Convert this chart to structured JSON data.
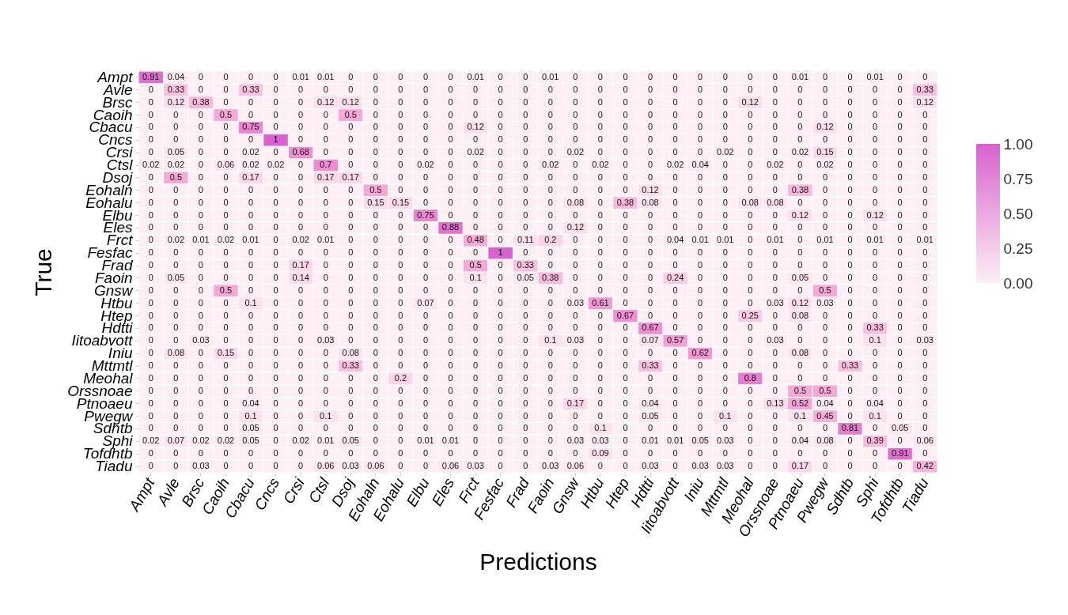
{
  "chart_data": {
    "type": "heatmap",
    "xlabel": "Predictions",
    "ylabel": "True",
    "categories": [
      "Ampt",
      "Avle",
      "Brsc",
      "Caoih",
      "Cbacu",
      "Cncs",
      "Crsi",
      "Ctsl",
      "Dsoj",
      "Eohaln",
      "Eohalu",
      "Elbu",
      "Eles",
      "Frct",
      "Fesfac",
      "Frad",
      "Faoin",
      "Gnsw",
      "Htbu",
      "Htep",
      "Hdtti",
      "Iitoabvott",
      "Iniu",
      "Mttmtl",
      "Meohal",
      "Orssnoae",
      "Ptnoaeu",
      "Pwegw",
      "Sdhtb",
      "Sphi",
      "Tofdhtb",
      "Tiadu"
    ],
    "y_categories": [
      "Ampt",
      "Avle",
      "Brsc",
      "Caoih",
      "Cbacu",
      "Cncs",
      "Crsi",
      "Ctsl",
      "Dsoj",
      "Eohaln",
      "Eohalu",
      "Elbu",
      "Eles",
      "Frct",
      "Fesfac",
      "Frad",
      "Faoin",
      "Gnsw",
      "Htbu",
      "Htep",
      "Hdtti",
      "Iitoabvott",
      "Iniu",
      "Mttmtl",
      "Meohal",
      "Orssnoae",
      "Ptnoaeu",
      "Pwegw",
      "Sdhtb",
      "Sphi",
      "Tofdhtb",
      "Tiadu"
    ],
    "cells": [
      [
        0.91,
        0.04,
        0,
        0,
        0,
        0,
        0.01,
        0.01,
        0,
        0,
        0,
        0,
        0,
        0.01,
        0,
        0,
        0.01,
        0,
        0,
        0,
        0,
        0,
        0,
        0,
        0,
        0,
        0.01,
        0,
        0,
        0.01,
        0,
        0
      ],
      [
        0,
        0.33,
        0,
        0,
        0.33,
        0,
        0,
        0,
        0,
        0,
        0,
        0,
        0,
        0,
        0,
        0,
        0,
        0,
        0,
        0,
        0,
        0,
        0,
        0,
        0,
        0,
        0,
        0,
        0,
        0,
        0,
        0.33
      ],
      [
        0,
        0.12,
        0.38,
        0,
        0,
        0,
        0,
        0.12,
        0.12,
        0,
        0,
        0,
        0,
        0,
        0,
        0,
        0,
        0,
        0,
        0,
        0,
        0,
        0,
        0,
        0.12,
        0,
        0,
        0,
        0,
        0,
        0,
        0.12
      ],
      [
        0,
        0,
        0,
        0.5,
        0,
        0,
        0,
        0,
        0.5,
        0,
        0,
        0,
        0,
        0,
        0,
        0,
        0,
        0,
        0,
        0,
        0,
        0,
        0,
        0,
        0,
        0,
        0,
        0,
        0,
        0,
        0,
        0
      ],
      [
        0,
        0,
        0,
        0,
        0.75,
        0,
        0,
        0,
        0,
        0,
        0,
        0,
        0,
        0.12,
        0,
        0,
        0,
        0,
        0,
        0,
        0,
        0,
        0,
        0,
        0,
        0,
        0,
        0.12,
        0,
        0,
        0,
        0
      ],
      [
        0,
        0,
        0,
        0,
        0,
        1,
        0,
        0,
        0,
        0,
        0,
        0,
        0,
        0,
        0,
        0,
        0,
        0,
        0,
        0,
        0,
        0,
        0,
        0,
        0,
        0,
        0,
        0,
        0,
        0,
        0,
        0
      ],
      [
        0,
        0.05,
        0,
        0,
        0.02,
        0,
        0.68,
        0,
        0,
        0,
        0,
        0,
        0,
        0.02,
        0,
        0,
        0,
        0.02,
        0,
        0,
        0,
        0,
        0,
        0.02,
        0,
        0,
        0.02,
        0.15,
        0,
        0,
        0,
        0
      ],
      [
        0.02,
        0.02,
        0,
        0.06,
        0.02,
        0.02,
        0,
        0.7,
        0,
        0,
        0,
        0.02,
        0,
        0,
        0,
        0,
        0.02,
        0,
        0.02,
        0,
        0,
        0.02,
        0.04,
        0,
        0,
        0.02,
        0,
        0.02,
        0,
        0,
        0,
        0
      ],
      [
        0,
        0.5,
        0,
        0,
        0.17,
        0,
        0,
        0.17,
        0.17,
        0,
        0,
        0,
        0,
        0,
        0,
        0,
        0,
        0,
        0,
        0,
        0,
        0,
        0,
        0,
        0,
        0,
        0,
        0,
        0,
        0,
        0,
        0
      ],
      [
        0,
        0,
        0,
        0,
        0,
        0,
        0,
        0,
        0,
        0.5,
        0,
        0,
        0,
        0,
        0,
        0,
        0,
        0,
        0,
        0,
        0.12,
        0,
        0,
        0,
        0,
        0,
        0.38,
        0,
        0,
        0,
        0,
        0
      ],
      [
        0,
        0,
        0,
        0,
        0,
        0,
        0,
        0,
        0,
        0.15,
        0.15,
        0,
        0,
        0,
        0,
        0,
        0,
        0.08,
        0,
        0.38,
        0.08,
        0,
        0,
        0,
        0.08,
        0.08,
        0,
        0,
        0,
        0,
        0,
        0
      ],
      [
        0,
        0,
        0,
        0,
        0,
        0,
        0,
        0,
        0,
        0,
        0,
        0.75,
        0,
        0,
        0,
        0,
        0,
        0,
        0,
        0,
        0,
        0,
        0,
        0,
        0,
        0,
        0.12,
        0,
        0,
        0.12,
        0,
        0
      ],
      [
        0,
        0,
        0,
        0,
        0,
        0,
        0,
        0,
        0,
        0,
        0,
        0,
        0.88,
        0,
        0,
        0,
        0,
        0.12,
        0,
        0,
        0,
        0,
        0,
        0,
        0,
        0,
        0,
        0,
        0,
        0,
        0,
        0
      ],
      [
        0,
        0.02,
        0.01,
        0.02,
        0.01,
        0,
        0.02,
        0.01,
        0,
        0,
        0,
        0,
        0,
        0.48,
        0,
        0.11,
        0.2,
        0,
        0,
        0,
        0,
        0.04,
        0.01,
        0.01,
        0,
        0.01,
        0,
        0.01,
        0,
        0.01,
        0,
        0.01
      ],
      [
        0,
        0,
        0,
        0,
        0,
        0,
        0,
        0,
        0,
        0,
        0,
        0,
        0,
        0,
        1,
        0,
        0,
        0,
        0,
        0,
        0,
        0,
        0,
        0,
        0,
        0,
        0,
        0,
        0,
        0,
        0,
        0
      ],
      [
        0,
        0,
        0,
        0,
        0,
        0,
        0.17,
        0,
        0,
        0,
        0,
        0,
        0,
        0.5,
        0,
        0.33,
        0,
        0,
        0,
        0,
        0,
        0,
        0,
        0,
        0,
        0,
        0,
        0,
        0,
        0,
        0,
        0
      ],
      [
        0,
        0.05,
        0,
        0,
        0,
        0,
        0.14,
        0,
        0,
        0,
        0,
        0,
        0,
        0.1,
        0,
        0.05,
        0.38,
        0,
        0,
        0,
        0,
        0.24,
        0,
        0,
        0,
        0,
        0.05,
        0,
        0,
        0,
        0,
        0
      ],
      [
        0,
        0,
        0,
        0.5,
        0,
        0,
        0,
        0,
        0,
        0,
        0,
        0,
        0,
        0,
        0,
        0,
        0,
        0,
        0,
        0,
        0,
        0,
        0,
        0,
        0,
        0,
        0,
        0.5,
        0,
        0,
        0,
        0
      ],
      [
        0,
        0,
        0,
        0,
        0.1,
        0,
        0,
        0,
        0,
        0,
        0,
        0.07,
        0,
        0,
        0,
        0,
        0,
        0.03,
        0.61,
        0,
        0,
        0,
        0,
        0,
        0,
        0.03,
        0.12,
        0.03,
        0,
        0,
        0,
        0
      ],
      [
        0,
        0,
        0,
        0,
        0,
        0,
        0,
        0,
        0,
        0,
        0,
        0,
        0,
        0,
        0,
        0,
        0,
        0,
        0,
        0.67,
        0,
        0,
        0,
        0,
        0.25,
        0,
        0.08,
        0,
        0,
        0,
        0,
        0
      ],
      [
        0,
        0,
        0,
        0,
        0,
        0,
        0,
        0,
        0,
        0,
        0,
        0,
        0,
        0,
        0,
        0,
        0,
        0,
        0,
        0,
        0.67,
        0,
        0,
        0,
        0,
        0,
        0,
        0,
        0,
        0.33,
        0,
        0
      ],
      [
        0,
        0,
        0.03,
        0,
        0,
        0,
        0,
        0.03,
        0,
        0,
        0,
        0,
        0,
        0,
        0,
        0,
        0.1,
        0.03,
        0,
        0,
        0.07,
        0.57,
        0,
        0,
        0,
        0.03,
        0,
        0,
        0,
        0.1,
        0,
        0.03
      ],
      [
        0,
        0.08,
        0,
        0.15,
        0,
        0,
        0,
        0,
        0.08,
        0,
        0,
        0,
        0,
        0,
        0,
        0,
        0,
        0,
        0,
        0,
        0,
        0,
        0.62,
        0,
        0,
        0,
        0.08,
        0,
        0,
        0,
        0,
        0
      ],
      [
        0,
        0,
        0,
        0,
        0,
        0,
        0,
        0,
        0.33,
        0,
        0,
        0,
        0,
        0,
        0,
        0,
        0,
        0,
        0,
        0,
        0.33,
        0,
        0,
        0,
        0,
        0,
        0,
        0,
        0.33,
        0,
        0,
        0
      ],
      [
        0,
        0,
        0,
        0,
        0,
        0,
        0,
        0,
        0,
        0,
        0.2,
        0,
        0,
        0,
        0,
        0,
        0,
        0,
        0,
        0,
        0,
        0,
        0,
        0,
        0.8,
        0,
        0,
        0,
        0,
        0,
        0,
        0
      ],
      [
        0,
        0,
        0,
        0,
        0,
        0,
        0,
        0,
        0,
        0,
        0,
        0,
        0,
        0,
        0,
        0,
        0,
        0,
        0,
        0,
        0,
        0,
        0,
        0,
        0,
        0,
        0.5,
        0.5,
        0,
        0,
        0,
        0
      ],
      [
        0,
        0,
        0,
        0,
        0.04,
        0,
        0,
        0,
        0,
        0,
        0,
        0,
        0,
        0,
        0,
        0,
        0,
        0.17,
        0,
        0,
        0.04,
        0,
        0,
        0,
        0,
        0.13,
        0.52,
        0.04,
        0,
        0.04,
        0,
        0
      ],
      [
        0,
        0,
        0,
        0,
        0.1,
        0,
        0,
        0.1,
        0,
        0,
        0,
        0,
        0,
        0,
        0,
        0,
        0,
        0,
        0,
        0,
        0.05,
        0,
        0,
        0.1,
        0,
        0,
        0.1,
        0.45,
        0,
        0.1,
        0,
        0
      ],
      [
        0,
        0,
        0,
        0,
        0.05,
        0,
        0,
        0,
        0,
        0,
        0,
        0,
        0,
        0,
        0,
        0,
        0,
        0,
        0.1,
        0,
        0,
        0,
        0,
        0,
        0,
        0,
        0,
        0,
        0.81,
        0,
        0.05,
        0
      ],
      [
        0.02,
        0.07,
        0.02,
        0.02,
        0.05,
        0,
        0.02,
        0.01,
        0.05,
        0,
        0,
        0.01,
        0.01,
        0,
        0,
        0,
        0,
        0.03,
        0.03,
        0,
        0.01,
        0.01,
        0.05,
        0.03,
        0,
        0,
        0.04,
        0.08,
        0,
        0.39,
        0,
        0.06
      ],
      [
        0,
        0,
        0,
        0,
        0,
        0,
        0,
        0,
        0,
        0,
        0,
        0,
        0,
        0,
        0,
        0,
        0,
        0,
        0.09,
        0,
        0,
        0,
        0,
        0,
        0,
        0,
        0,
        0,
        0,
        0,
        0.91,
        0
      ],
      [
        0,
        0,
        0.03,
        0,
        0,
        0,
        0,
        0.06,
        0.03,
        0.06,
        0,
        0,
        0.06,
        0.03,
        0,
        0,
        0.03,
        0.06,
        0,
        0,
        0.03,
        0,
        0.03,
        0.03,
        0,
        0,
        0.17,
        0,
        0,
        0,
        0,
        0.42
      ]
    ],
    "clim": [
      0,
      1
    ],
    "cticks": [
      {
        "value": 0,
        "label": "0.00"
      },
      {
        "value": 0.25,
        "label": "0.25"
      },
      {
        "value": 0.5,
        "label": "0.50"
      },
      {
        "value": 0.75,
        "label": "0.75"
      },
      {
        "value": 1,
        "label": "1.00"
      }
    ],
    "data_labels": true,
    "grid": false
  }
}
